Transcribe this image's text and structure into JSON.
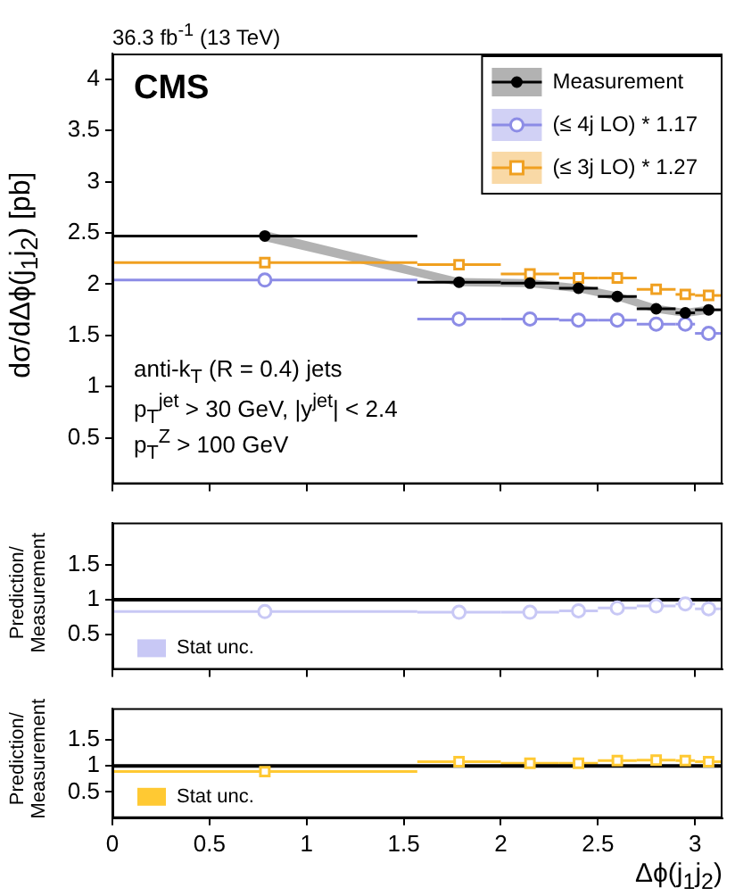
{
  "chart_data": [
    {
      "type": "scatter",
      "title": "36.3 fb$^{-1}$ (13 TeV)",
      "ylabel": "dσ/dΔϕ(j$_{1}$j$_{2}$)  [pb]",
      "annotations": [
        "CMS",
        "anti-k$_{T}$ (R = 0.4) jets",
        "p$_{T}$$^{jet}$ > 30 GeV, |y$^{jet}$| < 2.4",
        "p$_{T}$$^{Z}$ >  100 GeV"
      ],
      "x": [
        0.785,
        1.785,
        2.15,
        2.4,
        2.6,
        2.8,
        2.95,
        3.07
      ],
      "xlim": [
        0,
        3.1416
      ],
      "xticks": [
        0,
        0.5,
        1,
        1.5,
        2,
        2.5,
        3
      ],
      "ylim": [
        0.05,
        4.25
      ],
      "yticks": [
        0.5,
        1,
        1.5,
        2,
        2.5,
        3,
        3.5,
        4
      ],
      "tick_labels": "y",
      "legend": "top right",
      "series": [
        {
          "name": "Measurement",
          "color": "#000000",
          "marker": "circle",
          "values": [
            2.47,
            2.02,
            2.01,
            1.96,
            1.88,
            1.76,
            1.72,
            1.75
          ],
          "lower": [
            2.42,
            1.98,
            1.97,
            1.92,
            1.84,
            1.72,
            1.68,
            1.71
          ],
          "upper": [
            2.52,
            2.06,
            2.05,
            2.0,
            1.92,
            1.8,
            1.76,
            1.79
          ],
          "xerrors": [
            0.785,
            0.215,
            0.15,
            0.1,
            0.1,
            0.1,
            0.05,
            0.07
          ]
        },
        {
          "name": "(≤ 4j LO) * 1.17",
          "color": "#8c8ce6",
          "marker": "circle",
          "values": [
            2.04,
            1.66,
            1.66,
            1.65,
            1.65,
            1.61,
            1.61,
            1.52
          ],
          "xerrors": [
            0.785,
            0.215,
            0.15,
            0.1,
            0.1,
            0.1,
            0.05,
            0.07
          ]
        },
        {
          "name": "(≤ 3j LO) * 1.27",
          "color": "#f0a020",
          "marker": "square",
          "values": [
            2.21,
            2.19,
            2.1,
            2.06,
            2.06,
            1.95,
            1.9,
            1.89
          ],
          "xerrors": [
            0.785,
            0.215,
            0.15,
            0.1,
            0.1,
            0.1,
            0.05,
            0.07
          ]
        }
      ]
    },
    {
      "type": "scatter",
      "ylabel": "Prediction/Measurement",
      "x": [
        0.785,
        1.785,
        2.15,
        2.4,
        2.6,
        2.8,
        2.95,
        3.07
      ],
      "xlim": [
        0,
        3.1416
      ],
      "xticks": [
        0,
        0.5,
        1,
        1.5,
        2,
        2.5,
        3
      ],
      "ylim": [
        0,
        2.1
      ],
      "yticks": [
        0.5,
        1,
        1.5
      ],
      "tick_labels": "y",
      "legend": "bottom left",
      "ref_lines": [
        {
          "axis": "y",
          "value": 1,
          "color": "#000000"
        }
      ],
      "series": [
        {
          "name": "Stat unc.",
          "color": "#c8c8f5",
          "marker": "circle",
          "values": [
            0.83,
            0.82,
            0.82,
            0.84,
            0.88,
            0.91,
            0.94,
            0.87
          ],
          "xerrors": [
            0.785,
            0.215,
            0.15,
            0.1,
            0.1,
            0.1,
            0.05,
            0.07
          ]
        }
      ]
    },
    {
      "type": "scatter",
      "ylabel": "Prediction/Measurement",
      "xlabel": "Δϕ(j$_{1}$j$_{2}$)",
      "x": [
        0.785,
        1.785,
        2.15,
        2.4,
        2.6,
        2.8,
        2.95,
        3.07
      ],
      "xlim": [
        0,
        3.1416
      ],
      "xticks": [
        0,
        0.5,
        1,
        1.5,
        2,
        2.5,
        3
      ],
      "ylim": [
        0,
        2.1
      ],
      "yticks": [
        0.5,
        1,
        1.5
      ],
      "legend": "bottom left",
      "ref_lines": [
        {
          "axis": "y",
          "value": 1,
          "color": "#000000"
        }
      ],
      "series": [
        {
          "name": "Stat unc.",
          "color": "#ffc933",
          "marker": "square",
          "values": [
            0.89,
            1.08,
            1.05,
            1.05,
            1.1,
            1.11,
            1.1,
            1.08
          ],
          "xerrors": [
            0.785,
            0.215,
            0.15,
            0.1,
            0.1,
            0.1,
            0.05,
            0.07
          ]
        }
      ]
    }
  ]
}
